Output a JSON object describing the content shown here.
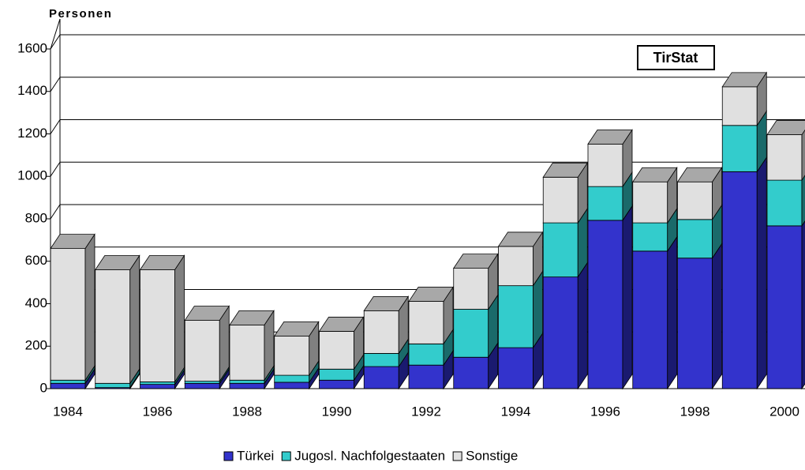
{
  "chart_data": {
    "type": "bar3d-stacked",
    "title": "Personen",
    "annotation": "TirStat",
    "categories": [
      "1984",
      null,
      "1986",
      null,
      "1988",
      null,
      "1990",
      null,
      "1992",
      null,
      "1994",
      null,
      "1996",
      null,
      "1998",
      null,
      "2000"
    ],
    "series": [
      {
        "name": "Türkei",
        "color": "#3333cc",
        "side": "#1a1a70",
        "values": [
          25,
          5,
          20,
          25,
          25,
          30,
          40,
          104,
          111,
          148,
          193,
          526,
          793,
          648,
          615,
          1022,
          767
        ]
      },
      {
        "name": "Jugosl. Nachfolgestaaten",
        "color": "#33cccc",
        "side": "#1a6a6a",
        "values": [
          15,
          20,
          12,
          10,
          15,
          33,
          52,
          62,
          100,
          226,
          292,
          255,
          159,
          133,
          182,
          218,
          215
        ]
      },
      {
        "name": "Sonstige",
        "color": "#e0e0e0",
        "side": "#808080",
        "values": [
          620,
          535,
          528,
          287,
          260,
          185,
          178,
          201,
          200,
          193,
          185,
          215,
          200,
          193,
          177,
          182,
          214
        ]
      }
    ],
    "ylim": [
      0,
      1600
    ],
    "yticks": [
      0,
      200,
      400,
      600,
      800,
      1000,
      1200,
      1400,
      1600
    ],
    "grid": true
  }
}
